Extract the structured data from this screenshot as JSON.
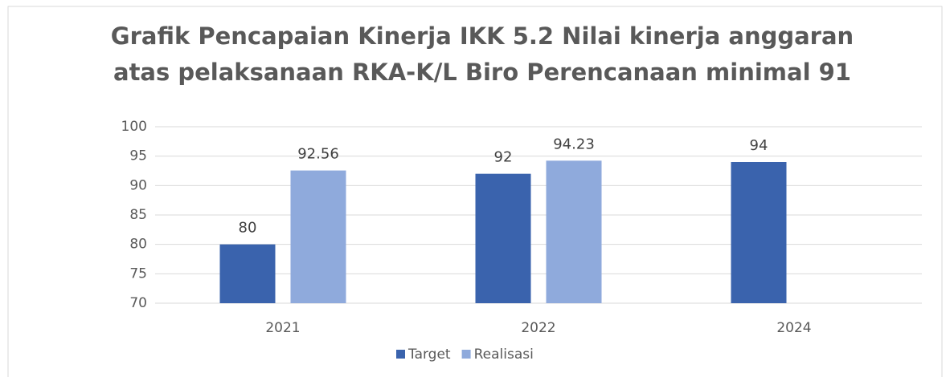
{
  "chart_data": {
    "type": "bar",
    "title": [
      "Grafik Pencapaian Kinerja IKK 5.2 Nilai kinerja anggaran",
      "atas pelaksanaan RKA-K/L Biro Perencanaan minimal 91"
    ],
    "categories": [
      "2021",
      "2022",
      "2024"
    ],
    "series": [
      {
        "name": "Target",
        "color": "#3a63ad",
        "values": [
          80,
          92,
          94
        ]
      },
      {
        "name": "Realisasi",
        "color": "#8faadc",
        "values": [
          92.56,
          94.23,
          null
        ]
      }
    ],
    "ylim": [
      70,
      100
    ],
    "yticks": [
      70,
      75,
      80,
      85,
      90,
      95,
      100
    ],
    "grid": true,
    "legend": "bottom"
  }
}
